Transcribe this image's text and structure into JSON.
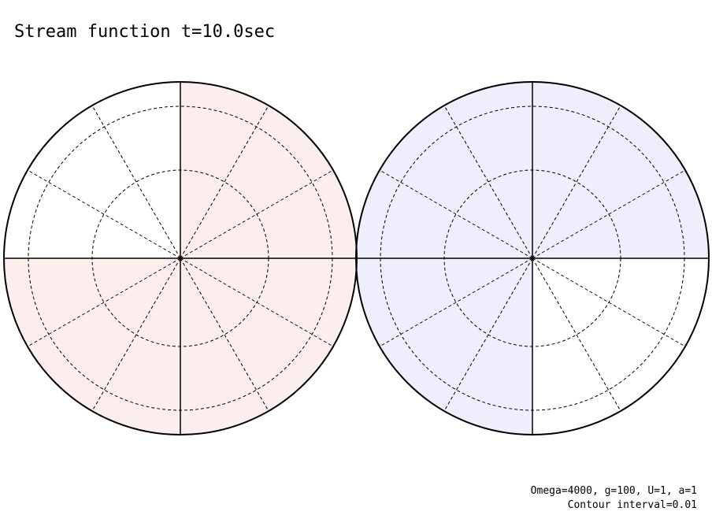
{
  "title": "Stream function t=10.0sec",
  "footer": {
    "parameters": "Omega=4000, g=100, U=1, a=1",
    "contour": "Contour interval=0.01"
  }
}
